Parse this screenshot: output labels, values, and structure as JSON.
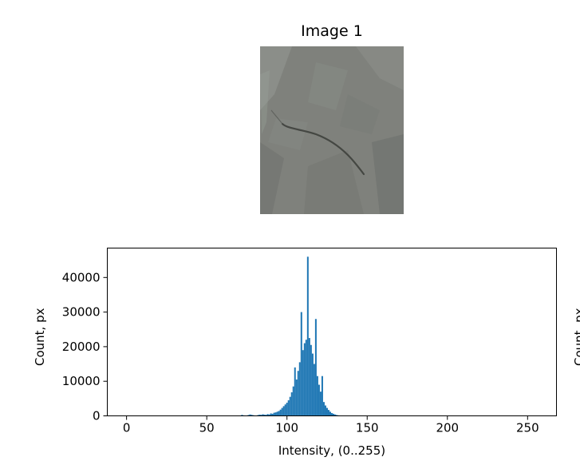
{
  "image_panel": {
    "title": "Image 1",
    "colors": {
      "base": "#7f817c",
      "dark": "#5f625e",
      "light": "#969994",
      "crack": "#3e403c"
    }
  },
  "chart_data": {
    "type": "bar",
    "title": "",
    "xlabel": "Intensity, (0..255)",
    "ylabel": "Count, px",
    "clipped_ylabel": "Count, px",
    "xlim": [
      -12,
      268
    ],
    "ylim": [
      0,
      48500
    ],
    "x_ticks": [
      0,
      50,
      100,
      150,
      200,
      250
    ],
    "y_ticks": [
      0,
      10000,
      20000,
      30000,
      40000
    ],
    "bar_color": "#1f77b4",
    "bin_width": 1,
    "bins": [
      [
        72,
        300
      ],
      [
        73,
        150
      ],
      [
        76,
        250
      ],
      [
        77,
        400
      ],
      [
        78,
        300
      ],
      [
        79,
        200
      ],
      [
        82,
        250
      ],
      [
        83,
        350
      ],
      [
        84,
        300
      ],
      [
        85,
        450
      ],
      [
        86,
        350
      ],
      [
        87,
        300
      ],
      [
        88,
        500
      ],
      [
        89,
        400
      ],
      [
        90,
        700
      ],
      [
        91,
        600
      ],
      [
        92,
        900
      ],
      [
        93,
        1000
      ],
      [
        94,
        1200
      ],
      [
        95,
        1400
      ],
      [
        96,
        1800
      ],
      [
        97,
        2300
      ],
      [
        98,
        2800
      ],
      [
        99,
        3300
      ],
      [
        100,
        3800
      ],
      [
        101,
        4500
      ],
      [
        102,
        5500
      ],
      [
        103,
        6800
      ],
      [
        104,
        8500
      ],
      [
        105,
        14000
      ],
      [
        106,
        10500
      ],
      [
        107,
        13000
      ],
      [
        108,
        15500
      ],
      [
        109,
        30000
      ],
      [
        110,
        19000
      ],
      [
        111,
        21000
      ],
      [
        112,
        22000
      ],
      [
        113,
        46000
      ],
      [
        114,
        22500
      ],
      [
        115,
        20500
      ],
      [
        116,
        18000
      ],
      [
        117,
        15000
      ],
      [
        118,
        28000
      ],
      [
        119,
        11500
      ],
      [
        120,
        9000
      ],
      [
        121,
        7000
      ],
      [
        122,
        11500
      ],
      [
        123,
        4000
      ],
      [
        124,
        3000
      ],
      [
        125,
        2300
      ],
      [
        126,
        1700
      ],
      [
        127,
        1200
      ],
      [
        128,
        800
      ],
      [
        129,
        600
      ],
      [
        130,
        400
      ],
      [
        131,
        250
      ],
      [
        132,
        150
      ]
    ]
  }
}
